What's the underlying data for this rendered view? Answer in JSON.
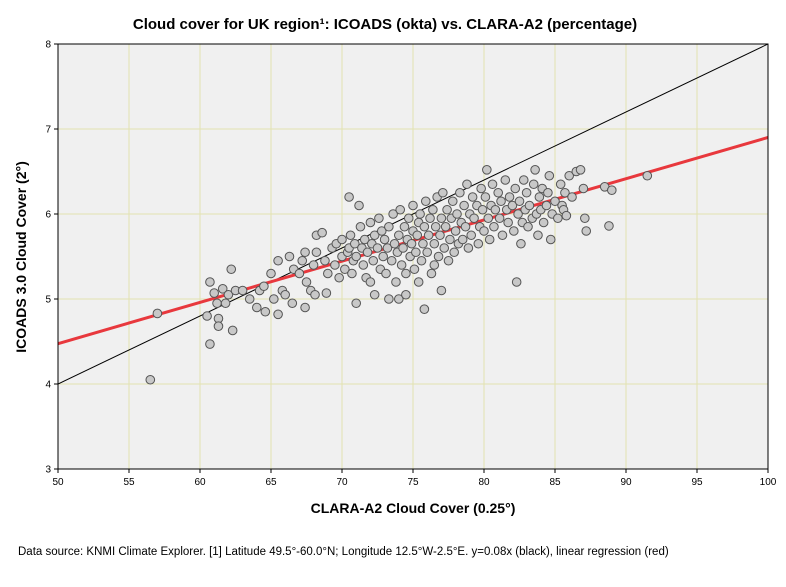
{
  "chart_data": {
    "type": "scatter",
    "title": "Cloud cover for UK region¹: ICOADS (okta) vs. CLARA-A2 (percentage)",
    "xlabel": "CLARA-A2 Cloud Cover (0.25°)",
    "ylabel": "ICOADS 3.0 Cloud Cover (2°)",
    "xlim": [
      50,
      100
    ],
    "ylim": [
      3,
      8
    ],
    "x_ticks": [
      50,
      55,
      60,
      65,
      70,
      75,
      80,
      85,
      90,
      95,
      100
    ],
    "y_ticks": [
      3,
      4,
      5,
      6,
      7,
      8
    ],
    "grid": true,
    "colors": {
      "plot_bg": "#f0f0f0",
      "grid": "#e2e2b0",
      "points_fill": "#c8c8c8",
      "points_edge": "#555555",
      "black_line": "#000000",
      "regression": "#e8383d"
    },
    "lines": [
      {
        "label": "y=0.08x",
        "color": "black",
        "slope": 0.08,
        "intercept": 0
      },
      {
        "label": "linear regression",
        "color": "red",
        "slope": 0.0485,
        "intercept": 2.05
      }
    ],
    "points": [
      [
        56.5,
        4.05
      ],
      [
        57.0,
        4.83
      ],
      [
        60.5,
        4.8
      ],
      [
        60.7,
        5.2
      ],
      [
        60.7,
        4.47
      ],
      [
        61.0,
        5.07
      ],
      [
        61.2,
        4.95
      ],
      [
        61.3,
        4.77
      ],
      [
        61.3,
        4.68
      ],
      [
        61.6,
        5.12
      ],
      [
        61.8,
        4.95
      ],
      [
        62.0,
        5.05
      ],
      [
        62.2,
        5.35
      ],
      [
        62.3,
        4.63
      ],
      [
        62.5,
        5.1
      ],
      [
        63.0,
        5.1
      ],
      [
        63.5,
        5.0
      ],
      [
        64.0,
        4.9
      ],
      [
        64.2,
        5.1
      ],
      [
        64.5,
        5.15
      ],
      [
        64.6,
        4.85
      ],
      [
        65.0,
        5.3
      ],
      [
        65.2,
        5.0
      ],
      [
        65.5,
        4.82
      ],
      [
        65.5,
        5.45
      ],
      [
        65.8,
        5.1
      ],
      [
        66.0,
        5.05
      ],
      [
        66.3,
        5.5
      ],
      [
        66.5,
        4.95
      ],
      [
        66.6,
        5.35
      ],
      [
        67.0,
        5.3
      ],
      [
        67.2,
        5.45
      ],
      [
        67.4,
        5.55
      ],
      [
        67.5,
        5.2
      ],
      [
        67.4,
        4.9
      ],
      [
        67.8,
        5.1
      ],
      [
        68.0,
        5.4
      ],
      [
        68.1,
        5.05
      ],
      [
        68.2,
        5.55
      ],
      [
        68.2,
        5.75
      ],
      [
        68.6,
        5.78
      ],
      [
        68.8,
        5.45
      ],
      [
        68.9,
        5.07
      ],
      [
        69.0,
        5.3
      ],
      [
        69.3,
        5.6
      ],
      [
        69.5,
        5.4
      ],
      [
        69.6,
        5.65
      ],
      [
        69.8,
        5.25
      ],
      [
        70.0,
        5.5
      ],
      [
        70.0,
        5.7
      ],
      [
        70.2,
        5.35
      ],
      [
        70.4,
        5.55
      ],
      [
        70.5,
        5.6
      ],
      [
        70.5,
        6.2
      ],
      [
        70.6,
        5.75
      ],
      [
        70.7,
        5.3
      ],
      [
        70.8,
        5.45
      ],
      [
        70.9,
        5.65
      ],
      [
        71.0,
        4.95
      ],
      [
        71.0,
        5.5
      ],
      [
        71.2,
        6.1
      ],
      [
        71.3,
        5.85
      ],
      [
        71.4,
        5.6
      ],
      [
        71.5,
        5.4
      ],
      [
        71.6,
        5.7
      ],
      [
        71.7,
        5.25
      ],
      [
        71.8,
        5.55
      ],
      [
        72.0,
        5.9
      ],
      [
        72.0,
        5.2
      ],
      [
        72.1,
        5.65
      ],
      [
        72.2,
        5.45
      ],
      [
        72.3,
        5.75
      ],
      [
        72.3,
        5.05
      ],
      [
        72.5,
        5.6
      ],
      [
        72.6,
        5.95
      ],
      [
        72.7,
        5.35
      ],
      [
        72.8,
        5.8
      ],
      [
        72.9,
        5.5
      ],
      [
        73.0,
        5.7
      ],
      [
        73.1,
        5.3
      ],
      [
        73.2,
        5.6
      ],
      [
        73.3,
        5.0
      ],
      [
        73.3,
        5.85
      ],
      [
        73.5,
        5.45
      ],
      [
        73.6,
        6.0
      ],
      [
        73.7,
        5.65
      ],
      [
        73.8,
        5.2
      ],
      [
        73.9,
        5.55
      ],
      [
        74.0,
        5.75
      ],
      [
        74.0,
        5.0
      ],
      [
        74.1,
        6.05
      ],
      [
        74.2,
        5.4
      ],
      [
        74.3,
        5.6
      ],
      [
        74.4,
        5.85
      ],
      [
        74.5,
        5.3
      ],
      [
        74.5,
        5.05
      ],
      [
        74.6,
        5.7
      ],
      [
        74.7,
        5.95
      ],
      [
        74.8,
        5.5
      ],
      [
        74.9,
        5.65
      ],
      [
        75.0,
        5.8
      ],
      [
        75.0,
        6.1
      ],
      [
        75.1,
        5.35
      ],
      [
        75.2,
        5.55
      ],
      [
        75.3,
        5.75
      ],
      [
        75.4,
        5.9
      ],
      [
        75.4,
        5.2
      ],
      [
        75.5,
        6.0
      ],
      [
        75.6,
        5.45
      ],
      [
        75.7,
        5.65
      ],
      [
        75.8,
        5.85
      ],
      [
        75.8,
        4.88
      ],
      [
        75.9,
        6.15
      ],
      [
        76.0,
        5.55
      ],
      [
        76.1,
        5.75
      ],
      [
        76.2,
        5.95
      ],
      [
        76.3,
        5.3
      ],
      [
        76.4,
        6.05
      ],
      [
        76.5,
        5.65
      ],
      [
        76.5,
        5.4
      ],
      [
        76.6,
        5.85
      ],
      [
        76.7,
        6.2
      ],
      [
        76.8,
        5.5
      ],
      [
        76.9,
        5.75
      ],
      [
        77.0,
        5.95
      ],
      [
        77.0,
        5.1
      ],
      [
        77.1,
        6.25
      ],
      [
        77.2,
        5.6
      ],
      [
        77.3,
        5.85
      ],
      [
        77.4,
        6.05
      ],
      [
        77.5,
        5.45
      ],
      [
        77.6,
        5.7
      ],
      [
        77.7,
        5.95
      ],
      [
        77.8,
        6.15
      ],
      [
        77.9,
        5.55
      ],
      [
        78.0,
        5.8
      ],
      [
        78.1,
        6.0
      ],
      [
        78.2,
        5.65
      ],
      [
        78.3,
        6.25
      ],
      [
        78.4,
        5.9
      ],
      [
        78.5,
        5.7
      ],
      [
        78.6,
        6.1
      ],
      [
        78.7,
        5.85
      ],
      [
        78.8,
        6.35
      ],
      [
        78.9,
        5.6
      ],
      [
        79.0,
        6.0
      ],
      [
        79.1,
        5.75
      ],
      [
        79.2,
        6.2
      ],
      [
        79.3,
        5.95
      ],
      [
        79.5,
        6.1
      ],
      [
        79.6,
        5.65
      ],
      [
        79.7,
        5.85
      ],
      [
        79.8,
        6.3
      ],
      [
        79.9,
        6.05
      ],
      [
        80.0,
        5.8
      ],
      [
        80.1,
        6.2
      ],
      [
        80.2,
        6.52
      ],
      [
        80.3,
        5.95
      ],
      [
        80.4,
        5.7
      ],
      [
        80.5,
        6.1
      ],
      [
        80.6,
        6.35
      ],
      [
        80.7,
        5.85
      ],
      [
        80.8,
        6.05
      ],
      [
        81.0,
        6.25
      ],
      [
        81.1,
        5.95
      ],
      [
        81.2,
        6.15
      ],
      [
        81.3,
        5.75
      ],
      [
        81.5,
        6.4
      ],
      [
        81.6,
        6.05
      ],
      [
        81.7,
        5.9
      ],
      [
        81.8,
        6.2
      ],
      [
        82.0,
        6.1
      ],
      [
        82.1,
        5.8
      ],
      [
        82.2,
        6.3
      ],
      [
        82.3,
        5.2
      ],
      [
        82.4,
        6.0
      ],
      [
        82.5,
        6.15
      ],
      [
        82.6,
        5.65
      ],
      [
        82.7,
        5.9
      ],
      [
        82.8,
        6.4
      ],
      [
        82.9,
        6.05
      ],
      [
        83.0,
        6.25
      ],
      [
        83.1,
        5.85
      ],
      [
        83.2,
        6.1
      ],
      [
        83.4,
        5.95
      ],
      [
        83.5,
        6.35
      ],
      [
        83.6,
        6.52
      ],
      [
        83.7,
        6.0
      ],
      [
        83.8,
        5.75
      ],
      [
        83.9,
        6.2
      ],
      [
        84.0,
        6.05
      ],
      [
        84.1,
        6.3
      ],
      [
        84.2,
        5.9
      ],
      [
        84.4,
        6.1
      ],
      [
        84.5,
        6.25
      ],
      [
        84.6,
        6.45
      ],
      [
        84.7,
        5.7
      ],
      [
        84.8,
        6.0
      ],
      [
        85.0,
        6.15
      ],
      [
        85.2,
        5.95
      ],
      [
        85.4,
        6.35
      ],
      [
        85.5,
        6.1
      ],
      [
        85.6,
        6.05
      ],
      [
        85.7,
        6.25
      ],
      [
        85.8,
        5.98
      ],
      [
        86.0,
        6.45
      ],
      [
        86.2,
        6.2
      ],
      [
        86.5,
        6.5
      ],
      [
        86.8,
        6.52
      ],
      [
        87.0,
        6.3
      ],
      [
        87.1,
        5.95
      ],
      [
        87.2,
        5.8
      ],
      [
        88.5,
        6.32
      ],
      [
        88.8,
        5.86
      ],
      [
        89.0,
        6.28
      ],
      [
        91.5,
        6.45
      ]
    ]
  },
  "footnote": "Data source: KNMI Climate Explorer. [1] Latitude 49.5°-60.0°N; Longitude 12.5°W-2.5°E. y=0.08x (black), linear regression (red)"
}
